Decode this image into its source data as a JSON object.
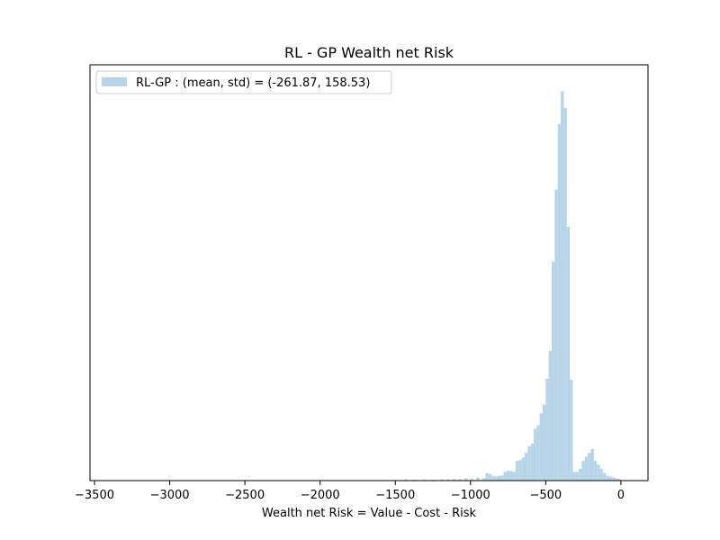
{
  "chart_data": {
    "type": "bar",
    "title": "RL - GP Wealth net Risk",
    "xlabel": "Wealth net Risk = Value - Cost - Risk",
    "ylabel": "",
    "xlim": [
      -3530,
      180
    ],
    "ylim": [
      0,
      1.05
    ],
    "y_axis_ticks_shown": false,
    "grid": false,
    "legend_position": "top-left",
    "bar_color": "#b8d4e8",
    "x_ticks": [
      -3500,
      -3000,
      -2500,
      -2000,
      -1500,
      -1000,
      -500,
      0
    ],
    "x_tick_labels": [
      "−3500",
      "−3000",
      "−2500",
      "−2000",
      "−1500",
      "−1000",
      "−500",
      "0"
    ],
    "series": [
      {
        "name": "RL-GP : (mean, std) = (-261.87, 158.53)",
        "bin_width": 20,
        "bin_starts": [
          -1440,
          -1380,
          -1320,
          -1260,
          -1200,
          -1160,
          -1120,
          -1080,
          -1040,
          -1000,
          -960,
          -920,
          -900,
          -880,
          -860,
          -840,
          -820,
          -800,
          -780,
          -760,
          -740,
          -720,
          -700,
          -680,
          -660,
          -640,
          -620,
          -600,
          -580,
          -560,
          -540,
          -520,
          -500,
          -480,
          -460,
          -440,
          -420,
          -400,
          -380,
          -360,
          -340,
          -320,
          -300,
          -280,
          -260,
          -240,
          -220,
          -200,
          -180,
          -160,
          -140,
          -120,
          -100,
          -80,
          -60,
          -40,
          -20
        ],
        "values": [
          0.003,
          0.002,
          0.003,
          0.002,
          0.003,
          0.003,
          0.004,
          0.004,
          0.006,
          0.004,
          0.008,
          0.006,
          0.019,
          0.017,
          0.012,
          0.01,
          0.012,
          0.013,
          0.022,
          0.025,
          0.024,
          0.022,
          0.05,
          0.052,
          0.058,
          0.07,
          0.087,
          0.093,
          0.131,
          0.14,
          0.17,
          0.192,
          0.257,
          0.328,
          0.553,
          0.735,
          0.9,
          0.983,
          0.941,
          0.641,
          0.255,
          0.022,
          0.022,
          0.03,
          0.05,
          0.06,
          0.07,
          0.08,
          0.05,
          0.04,
          0.03,
          0.02,
          0.012,
          0.01,
          0.008,
          0.006,
          0.004
        ]
      }
    ]
  }
}
